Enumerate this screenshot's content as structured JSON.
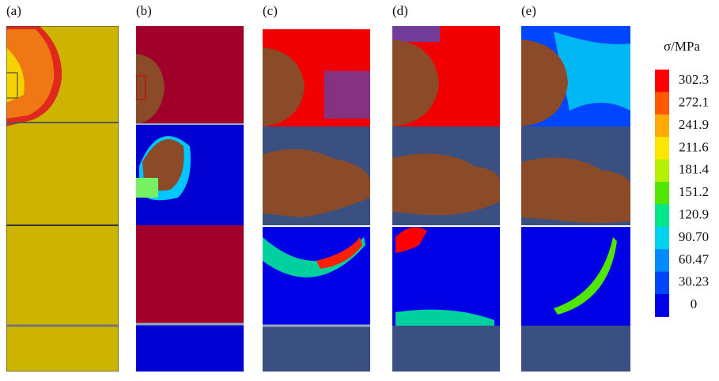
{
  "panels": [
    {
      "label": "(a)"
    },
    {
      "label": "(b)"
    },
    {
      "label": "(c)"
    },
    {
      "label": "(d)"
    },
    {
      "label": "(e)"
    }
  ],
  "colorbar": {
    "title": "σ/MPa",
    "labels": [
      "302.3",
      "272.1",
      "241.9",
      "211.6",
      "181.4",
      "151.2",
      "120.9",
      "90.70",
      "60.47",
      "30.23",
      "0"
    ],
    "colors": [
      "#ff0000",
      "#ff5a00",
      "#ffaa00",
      "#ffe600",
      "#b4f000",
      "#50e600",
      "#00e68c",
      "#00d2f0",
      "#008cff",
      "#0046ff",
      "#0000e6"
    ]
  }
}
